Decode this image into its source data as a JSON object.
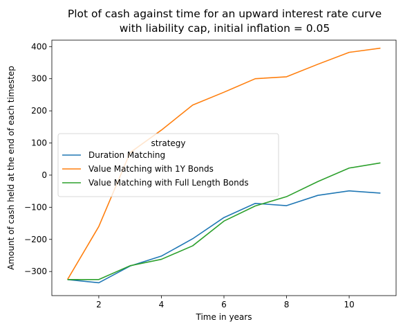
{
  "chart_data": {
    "type": "line",
    "title": {
      "line1": "Plot of cash against time for an upward interest rate curve",
      "line2": "with liability cap, initial inflation = 0.05"
    },
    "xlabel": "Time in years",
    "ylabel": "Amount of cash held at the end of each timestep",
    "xlim": [
      0.5,
      11.5
    ],
    "ylim": [
      -375,
      420
    ],
    "x_ticks": [
      2,
      4,
      6,
      8,
      10
    ],
    "y_ticks": [
      -300,
      -200,
      -100,
      0,
      100,
      200,
      300,
      400
    ],
    "x": [
      1,
      2,
      3,
      4,
      5,
      6,
      7,
      8,
      9,
      10,
      11
    ],
    "legend": {
      "title": "strategy",
      "placement": "center-left"
    },
    "grid": false,
    "series": [
      {
        "name": "Duration Matching",
        "color": "#1f77b4",
        "values": [
          -325,
          -335,
          -283,
          -252,
          -198,
          -132,
          -88,
          -95,
          -63,
          -49,
          -56
        ]
      },
      {
        "name": "Value Matching with 1Y Bonds",
        "color": "#ff7f0e",
        "values": [
          -325,
          -160,
          70,
          140,
          218,
          258,
          300,
          306,
          345,
          382,
          395
        ]
      },
      {
        "name": "Value Matching with Full Length Bonds",
        "color": "#2ca02c",
        "values": [
          -325,
          -325,
          -282,
          -262,
          -220,
          -143,
          -96,
          -67,
          -20,
          22,
          38
        ]
      }
    ]
  }
}
